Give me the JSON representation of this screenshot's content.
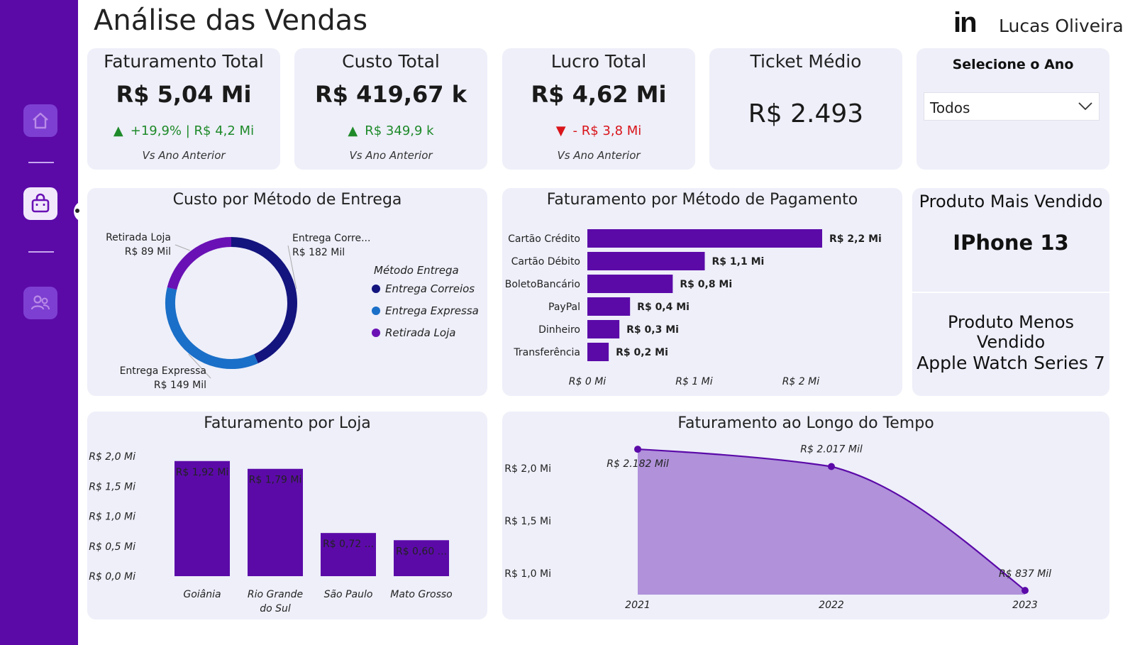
{
  "header": {
    "title": "Análise das Vendas",
    "brand_icon": "in",
    "author": "Lucas Oliveira"
  },
  "sidebar": {
    "items": [
      {
        "icon": "home-icon",
        "active": false
      },
      {
        "icon": "shopping-bag-icon",
        "active": true
      },
      {
        "icon": "users-icon",
        "active": false
      }
    ]
  },
  "kpis": [
    {
      "label": "Faturamento Total",
      "value": "R$ 5,04 Mi",
      "delta": "+19,9% | R$ 4,2 Mi",
      "trend": "up",
      "sub": "Vs Ano Anterior"
    },
    {
      "label": "Custo Total",
      "value": "R$ 419,67 k",
      "delta": "R$ 349,9 k",
      "trend": "up",
      "sub": "Vs Ano Anterior"
    },
    {
      "label": "Lucro Total",
      "value": "R$ 4,62 Mi",
      "delta": "- R$ 3,8 Mi",
      "trend": "down",
      "sub": "Vs Ano Anterior"
    },
    {
      "label": "Ticket Médio",
      "value": "R$ 2.493"
    }
  ],
  "trend_glyphs": {
    "up": "▲",
    "down": "▼"
  },
  "year_filter": {
    "label": "Selecione o Ano",
    "selected": "Todos"
  },
  "products": {
    "most_title": "Produto Mais Vendido",
    "most_value": "IPhone 13",
    "least_title": "Produto Menos Vendido",
    "least_value": "Apple Watch Series 7"
  },
  "colors": {
    "sidebar": "#5b0aa8",
    "bar": "#5b0aa8",
    "card": "#eeeff9",
    "correios": "#13147e",
    "expressa": "#1a6fc8",
    "retirada": "#6a11b5",
    "area": "#b091da",
    "up": "#1f8a2a",
    "down": "#d9141a"
  },
  "chart_data": [
    {
      "type": "pie",
      "title": "Custo por Método de Entrega",
      "legend_title": "Método Entrega",
      "categories": [
        "Entrega Correios",
        "Entrega Expressa",
        "Retirada Loja"
      ],
      "values": [
        182,
        149,
        89
      ],
      "slice_labels": [
        "Entrega Corre...",
        "Entrega Expressa",
        "Retirada Loja"
      ],
      "value_labels": [
        "R$ 182 Mil",
        "R$ 149 Mil",
        "R$ 89 Mil"
      ],
      "legend_position": "right"
    },
    {
      "type": "bar",
      "orientation": "horizontal",
      "title": "Faturamento por Método de Pagamento",
      "categories": [
        "Cartão Crédito",
        "Cartão Débito",
        "BoletoBancário",
        "PayPal",
        "Dinheiro",
        "Transferência"
      ],
      "values": [
        2.2,
        1.1,
        0.8,
        0.4,
        0.3,
        0.2
      ],
      "value_labels": [
        "R$ 2,2 Mi",
        "R$ 1,1 Mi",
        "R$ 0,8 Mi",
        "R$ 0,4 Mi",
        "R$ 0,3 Mi",
        "R$ 0,2 Mi"
      ],
      "xlim": [
        0,
        2.2
      ],
      "xticks": [
        0,
        1,
        2
      ],
      "xtick_labels": [
        "R$ 0 Mi",
        "R$ 1 Mi",
        "R$ 2 Mi"
      ]
    },
    {
      "type": "bar",
      "title": "Faturamento por Loja",
      "categories": [
        "Goiânia",
        "Rio Grande do Sul",
        "São Paulo",
        "Mato Grosso"
      ],
      "category_lines": [
        [
          "Goiânia"
        ],
        [
          "Rio Grande",
          "do Sul"
        ],
        [
          "São Paulo"
        ],
        [
          "Mato Grosso"
        ]
      ],
      "values": [
        1.92,
        1.79,
        0.72,
        0.6
      ],
      "value_labels": [
        "R$ 1,92 Mi",
        "R$ 1,79 Mi",
        "R$ 0,72 ...",
        "R$ 0,60 ..."
      ],
      "ylim": [
        0,
        2.0
      ],
      "yticks": [
        0,
        0.5,
        1.0,
        1.5,
        2.0
      ],
      "ytick_labels": [
        "R$ 0,0 Mi",
        "R$ 0,5 Mi",
        "R$ 1,0 Mi",
        "R$ 1,5 Mi",
        "R$ 2,0 Mi"
      ]
    },
    {
      "type": "area",
      "title": "Faturamento ao Longo do Tempo",
      "x": [
        "2021",
        "2022",
        "2023"
      ],
      "values": [
        2.182,
        2.017,
        0.837
      ],
      "value_labels": [
        "R$ 2.182 Mil",
        "R$ 2.017 Mil",
        "R$ 837 Mil"
      ],
      "yticks": [
        1.0,
        1.5,
        2.0
      ],
      "ytick_labels": [
        "R$ 1,0 Mi",
        "R$ 1,5 Mi",
        "R$ 2,0 Mi"
      ]
    }
  ]
}
